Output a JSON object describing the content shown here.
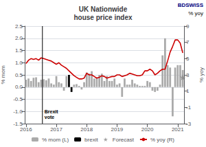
{
  "chart_data": {
    "type": "bar",
    "title": "UK Nationwide\nhouse price index",
    "ylabel": "% mom",
    "y2label": "% yoy",
    "categories": [
      "2016",
      null,
      null,
      null,
      null,
      null,
      null,
      null,
      null,
      null,
      null,
      null,
      "2017",
      null,
      null,
      null,
      null,
      null,
      null,
      null,
      null,
      null,
      null,
      null,
      "2018",
      null,
      null,
      null,
      null,
      null,
      null,
      null,
      null,
      null,
      null,
      null,
      "2019",
      null,
      null,
      null,
      null,
      null,
      null,
      null,
      null,
      null,
      null,
      null,
      "2020",
      null,
      null,
      null,
      null,
      null,
      null,
      null,
      null,
      null,
      null,
      null,
      "2021",
      null,
      null
    ],
    "series": [
      {
        "name": "% mom (L)",
        "type": "bar",
        "color": "#aaaaaa",
        "values": [
          0.3,
          0.35,
          0.25,
          0.38,
          0.4,
          0.2,
          0.3,
          0.32,
          0.28,
          0.35,
          0.15,
          0.1,
          0.45,
          0.2,
          0.15,
          -0.15,
          0.45,
          null,
          null,
          0.1,
          0.12,
          0.05,
          -0.1,
          0.2,
          0.6,
          0.55,
          0.65,
          0.35,
          0.4,
          0.5,
          0.55,
          0.25,
          0.45,
          0.25,
          0.25,
          0.35,
          0.1,
          0.15,
          -0.4,
          0.35,
          0.1,
          0.1,
          0.3,
          0.15,
          0.1,
          0.05,
          0.05,
          0.05,
          0.25,
          0.2,
          -0.15,
          -0.2,
          -0.15,
          0.1,
          1.3,
          2.0,
          0.9,
          0.8,
          -1.2,
          0.8,
          0.9,
          0.9,
          0.7
        ]
      },
      {
        "name": "brexit",
        "type": "bar",
        "color": "#000000",
        "values": [
          null,
          null,
          null,
          null,
          null,
          null,
          null,
          null,
          null,
          null,
          null,
          null,
          null,
          null,
          null,
          null,
          null,
          0.5,
          -0.2,
          null,
          null,
          null,
          null,
          null,
          null,
          null,
          null,
          null,
          null,
          null,
          null,
          null,
          null,
          null,
          null,
          null,
          null,
          null,
          null,
          null,
          null,
          null,
          null,
          null,
          null,
          null,
          null,
          null,
          null,
          null,
          null,
          null,
          null,
          null,
          null,
          null,
          null,
          null,
          null,
          null,
          null,
          null,
          null
        ]
      },
      {
        "name": "Forecast",
        "type": "scatter",
        "color": "#888888",
        "marker": "star",
        "values": [
          null,
          null,
          null,
          null,
          null,
          null,
          null,
          null,
          null,
          null,
          null,
          null,
          null,
          null,
          null,
          null,
          null,
          null,
          null,
          null,
          null,
          null,
          null,
          null,
          null,
          null,
          null,
          null,
          null,
          null,
          null,
          null,
          null,
          null,
          null,
          null,
          null,
          null,
          null,
          null,
          null,
          null,
          null,
          null,
          null,
          null,
          null,
          null,
          null,
          null,
          null,
          null,
          null,
          null,
          null,
          null,
          null,
          null,
          null,
          null,
          null,
          null,
          0.4
        ]
      },
      {
        "name": "% yoy (R)",
        "type": "line",
        "color": "#cc0000",
        "axis": "y2",
        "values": [
          4.4,
          4.8,
          5.0,
          4.9,
          5.0,
          4.8,
          5.1,
          5.0,
          4.9,
          4.8,
          4.7,
          4.5,
          4.3,
          4.5,
          4.2,
          4.0,
          3.8,
          3.5,
          3.2,
          2.9,
          2.7,
          2.5,
          2.5,
          2.6,
          3.2,
          3.0,
          3.0,
          2.8,
          2.6,
          2.7,
          2.9,
          2.8,
          2.6,
          2.7,
          2.8,
          2.8,
          3.0,
          3.0,
          2.8,
          2.9,
          3.0,
          3.2,
          3.1,
          3.0,
          2.9,
          2.9,
          3.0,
          3.5,
          3.5,
          3.7,
          3.5,
          3.0,
          3.2,
          3.5,
          3.7,
          3.7,
          4.7,
          5.8,
          6.5,
          7.3,
          7.3,
          6.9,
          5.7
        ]
      }
    ],
    "ylim": [
      -1.5,
      2.5
    ],
    "yticks": [
      -1.5,
      {
        "value": -1.0,
        "label": "-1.0"
      },
      -0.5,
      {
        "value": 0.0,
        "label": "0.0"
      },
      0.5,
      {
        "value": 1.0,
        "label": "1.0"
      },
      1.5,
      {
        "value": 2.0,
        "label": "2.0"
      },
      2.5
    ],
    "y2lim": [
      -3,
      9
    ],
    "y2ticks": [
      -3,
      -1,
      1,
      3,
      5,
      7,
      9
    ],
    "grid": true,
    "legend": "bottom",
    "annotations": [
      {
        "text": "Brexit\nvote",
        "x": 6.5,
        "color": "#000000"
      },
      {
        "text": "BDSWISS",
        "color": "#000080"
      },
      {
        "text": "% yoy",
        "color": "#000000"
      }
    ]
  }
}
